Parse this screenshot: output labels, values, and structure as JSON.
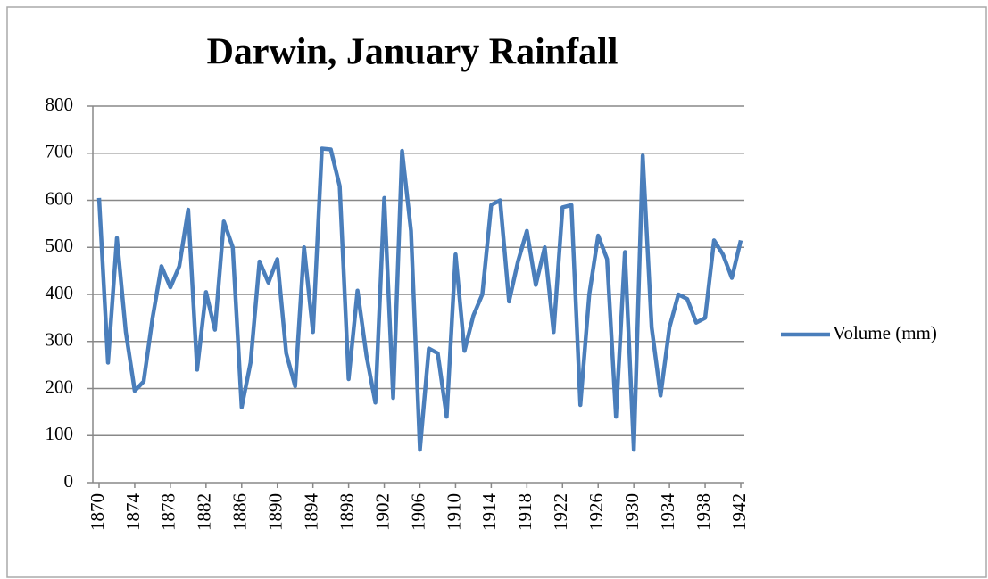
{
  "chart_data": {
    "type": "line",
    "title": "Darwin, January Rainfall",
    "x": [
      1870,
      1871,
      1872,
      1873,
      1874,
      1875,
      1876,
      1877,
      1878,
      1879,
      1880,
      1881,
      1882,
      1883,
      1884,
      1885,
      1886,
      1887,
      1888,
      1889,
      1890,
      1891,
      1892,
      1893,
      1894,
      1895,
      1896,
      1897,
      1898,
      1899,
      1900,
      1901,
      1902,
      1903,
      1904,
      1905,
      1906,
      1907,
      1908,
      1909,
      1910,
      1911,
      1912,
      1913,
      1914,
      1915,
      1916,
      1917,
      1918,
      1919,
      1920,
      1921,
      1922,
      1923,
      1924,
      1925,
      1926,
      1927,
      1928,
      1929,
      1930,
      1931,
      1932,
      1933,
      1934,
      1935,
      1936,
      1937,
      1938,
      1939,
      1940,
      1941,
      1942
    ],
    "series": [
      {
        "name": "Volume (mm)",
        "color": "#4a7ebb",
        "values": [
          605,
          255,
          520,
          320,
          195,
          215,
          350,
          460,
          415,
          460,
          580,
          240,
          405,
          325,
          555,
          500,
          160,
          255,
          470,
          425,
          475,
          275,
          205,
          500,
          320,
          710,
          708,
          630,
          220,
          408,
          270,
          170,
          605,
          180,
          705,
          535,
          70,
          285,
          275,
          140,
          485,
          280,
          355,
          400,
          590,
          600,
          385,
          470,
          535,
          420,
          500,
          320,
          585,
          590,
          165,
          400,
          525,
          475,
          140,
          490,
          70,
          695,
          330,
          185,
          330,
          400,
          390,
          340,
          350,
          515,
          485,
          435,
          515
        ]
      }
    ],
    "xlim": [
      1870,
      1942
    ],
    "xticks": [
      1870,
      1874,
      1878,
      1882,
      1886,
      1890,
      1894,
      1898,
      1902,
      1906,
      1910,
      1914,
      1918,
      1922,
      1926,
      1930,
      1934,
      1938,
      1942
    ],
    "ylim": [
      0,
      800
    ],
    "yticks": [
      0,
      100,
      200,
      300,
      400,
      500,
      600,
      700,
      800
    ],
    "grid": true,
    "legend": "right"
  }
}
